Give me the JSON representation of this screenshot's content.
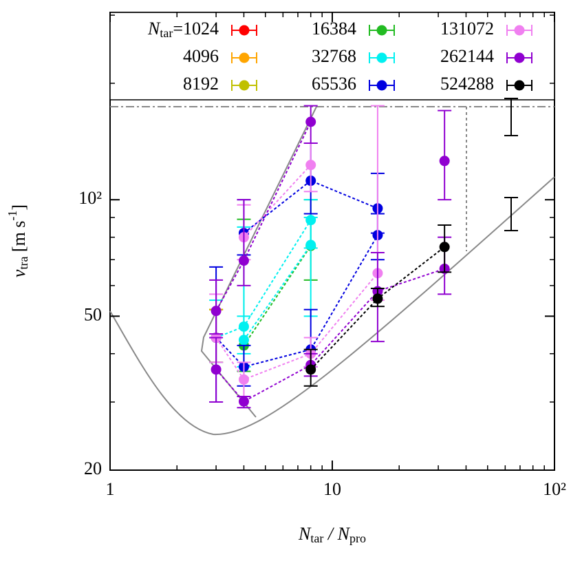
{
  "chart_data": {
    "type": "scatter",
    "xlabel": {
      "main": "N",
      "sub": "tar",
      "mid": " / N",
      "sub2": "pro"
    },
    "ylabel": {
      "main": "v",
      "sub": "tra",
      "rest": " [m s",
      "sup": "-1",
      "end": "]"
    },
    "legend_prefix": {
      "main": "N",
      "sub": "tar",
      "rest": "="
    },
    "log_x": true,
    "log_y": true,
    "xlim": [
      1,
      100
    ],
    "ylim": [
      20,
      305
    ],
    "xticks": [
      1,
      10,
      {
        "value": 100,
        "label": "10²"
      }
    ],
    "yticks": [
      20,
      50,
      {
        "value": 100,
        "label": "10²"
      }
    ],
    "series": [
      {
        "name": "1024",
        "color": "#ff0000",
        "x": [
          3
        ],
        "values": [
          44
        ],
        "low": [
          38
        ],
        "high": [
          52
        ]
      },
      {
        "name": "4096",
        "color": "#ffa500",
        "x": [
          3
        ],
        "values": [
          44
        ],
        "low": [
          38
        ],
        "high": [
          52
        ]
      },
      {
        "name": "8192",
        "color": "#c0c000",
        "x": [
          3
        ],
        "values": [
          44
        ],
        "low": [
          38
        ],
        "high": [
          52
        ]
      },
      {
        "name": "16384",
        "color": "#22bb22",
        "x": [
          4,
          8
        ],
        "values": [
          42,
          76
        ],
        "low": [
          36,
          62
        ],
        "high": [
          89,
          100
        ]
      },
      {
        "name": "32768",
        "color": "#00f0f0",
        "x": [
          3,
          4,
          8,
          null,
          4,
          8
        ],
        "values": [
          44,
          47,
          88.6,
          null,
          43.4,
          76.4
        ],
        "low": [
          38,
          40,
          75,
          null,
          37,
          50
        ],
        "high": [
          55,
          85,
          100,
          null,
          50,
          90
        ]
      },
      {
        "name": "65536",
        "color": "#0000e0",
        "x": [
          4,
          8,
          16,
          null,
          3,
          4,
          8,
          16
        ],
        "values": [
          82,
          112,
          95,
          null,
          44,
          37,
          41,
          81
        ],
        "low": [
          72,
          92,
          82,
          null,
          30,
          33,
          37,
          70
        ],
        "high": [
          100,
          140,
          117,
          null,
          67,
          42,
          52,
          92
        ]
      },
      {
        "name": "131072",
        "color": "#f080f0",
        "x": [
          4,
          8,
          null,
          3,
          4,
          8,
          16
        ],
        "values": [
          80,
          123,
          null,
          44,
          34.3,
          40,
          64.6
        ],
        "low": [
          70,
          105,
          null,
          38,
          31,
          37,
          55
        ],
        "high": [
          97,
          140,
          null,
          57,
          38,
          44,
          175
        ]
      },
      {
        "name": "262144",
        "color": "#9000d0",
        "x": [
          3,
          4,
          8,
          null,
          3,
          4,
          8,
          16,
          32,
          null,
          32
        ],
        "values": [
          51.6,
          69.6,
          159,
          null,
          36.4,
          30.1,
          37.4,
          58,
          66.3,
          null,
          126
        ],
        "low": [
          45,
          60,
          140,
          null,
          30,
          29,
          35,
          43,
          57,
          null,
          100
        ],
        "high": [
          62,
          100,
          175,
          null,
          44,
          31,
          40,
          73,
          80,
          null,
          170
        ]
      },
      {
        "name": "524288",
        "color": "#000000",
        "x": [
          8,
          16,
          32
        ],
        "values": [
          36.4,
          55.5,
          75.5
        ],
        "low": [
          33,
          53,
          65
        ],
        "high": [
          41,
          59,
          86
        ]
      }
    ]
  }
}
